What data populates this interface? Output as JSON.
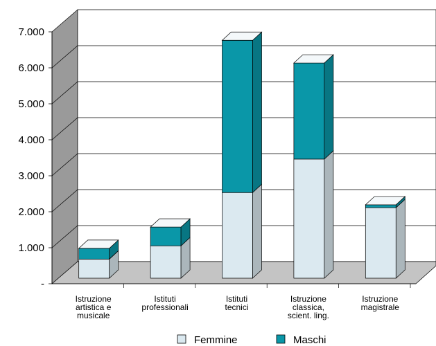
{
  "chart_data": {
    "type": "bar3d-stacked",
    "categories": [
      "Istruzione\nartistica e\nmusicale",
      "Istituti\nprofessionali",
      "Istituti\ntecnici",
      "Istruzione\nclassica,\nscient. ling.",
      "Istruzione\nmagistrale"
    ],
    "series": [
      {
        "name": "Femmine",
        "color": "#dbe9f0",
        "values": [
          530,
          900,
          2380,
          3310,
          1960
        ]
      },
      {
        "name": "Maschi",
        "color": "#0a97a8",
        "values": [
          300,
          520,
          4230,
          2670,
          80
        ]
      }
    ],
    "ylim": [
      0,
      7000
    ],
    "yticks": [
      {
        "value": 0,
        "label": "-"
      },
      {
        "value": 1000,
        "label": "1.000"
      },
      {
        "value": 2000,
        "label": "2.000"
      },
      {
        "value": 3000,
        "label": "3.000"
      },
      {
        "value": 4000,
        "label": "4.000"
      },
      {
        "value": 5000,
        "label": "5.000"
      },
      {
        "value": 6000,
        "label": "6.000"
      },
      {
        "value": 7000,
        "label": "7.000"
      }
    ],
    "grid": true,
    "legend": "bottom"
  }
}
